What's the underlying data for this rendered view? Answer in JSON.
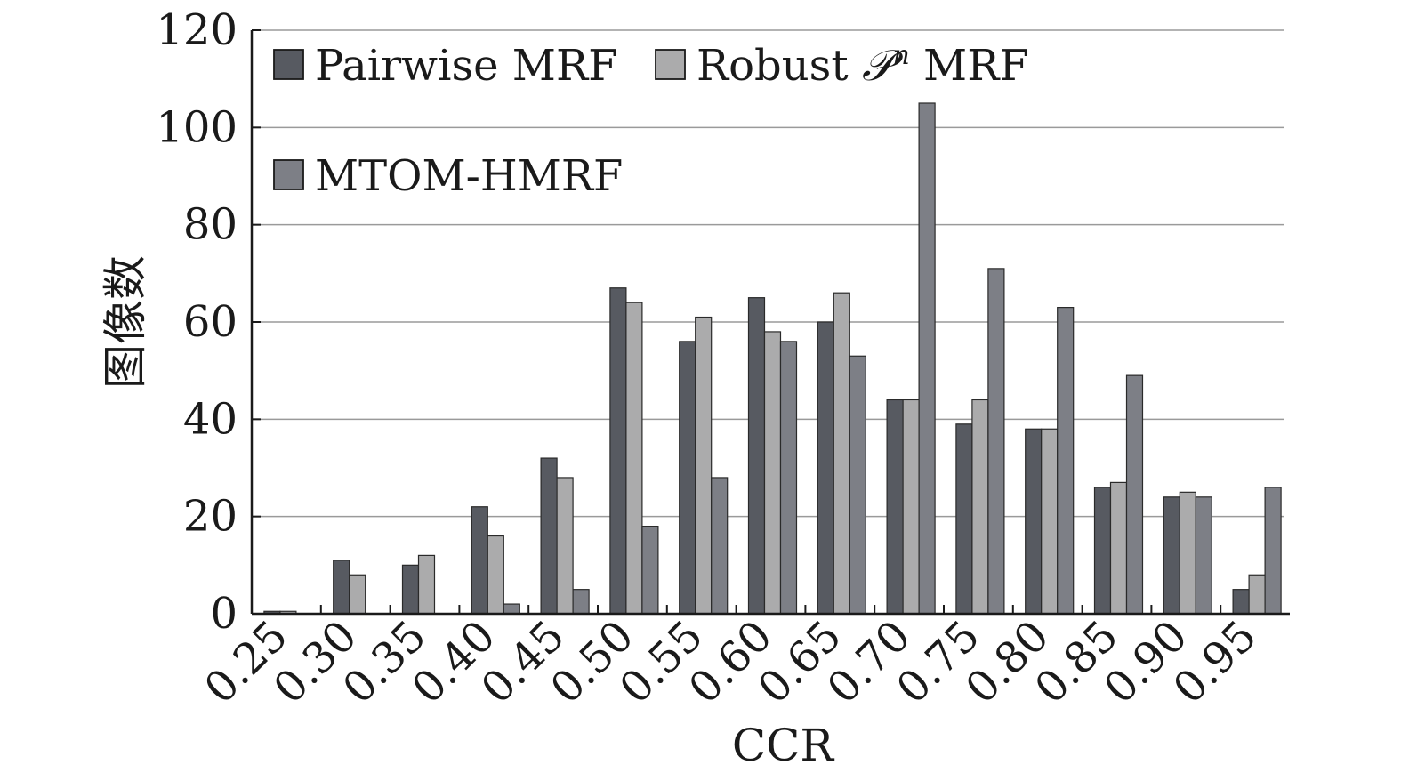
{
  "chart_data": {
    "type": "bar",
    "xlabel": "CCR",
    "ylabel": "图像数",
    "ylim": [
      0,
      120
    ],
    "yticks": [
      0,
      20,
      40,
      60,
      80,
      100,
      120
    ],
    "grid": "horizontal",
    "legend_position": "top-left",
    "categories": [
      "0.25",
      "0.30",
      "0.35",
      "0.40",
      "0.45",
      "0.50",
      "0.55",
      "0.60",
      "0.65",
      "0.70",
      "0.75",
      "0.80",
      "0.85",
      "0.90",
      "0.95"
    ],
    "series": [
      {
        "name": "Pairwise MRF",
        "color": "#575a61",
        "values": [
          0.5,
          11,
          10,
          22,
          32,
          67,
          56,
          65,
          60,
          44,
          39,
          38,
          26,
          24,
          5
        ]
      },
      {
        "name": "Robust",
        "name_sup": "n",
        "name_script": "𝒫",
        "name_suffix": "MRF",
        "color": "#ababac",
        "values": [
          0.5,
          8,
          12,
          16,
          28,
          64,
          61,
          58,
          66,
          44,
          44,
          38,
          27,
          25,
          8
        ]
      },
      {
        "name": "MTOM-HMRF",
        "color": "#7d7f86",
        "values": [
          0,
          0,
          0,
          2,
          5,
          18,
          28,
          56,
          53,
          105,
          71,
          63,
          49,
          24,
          26
        ]
      }
    ]
  }
}
